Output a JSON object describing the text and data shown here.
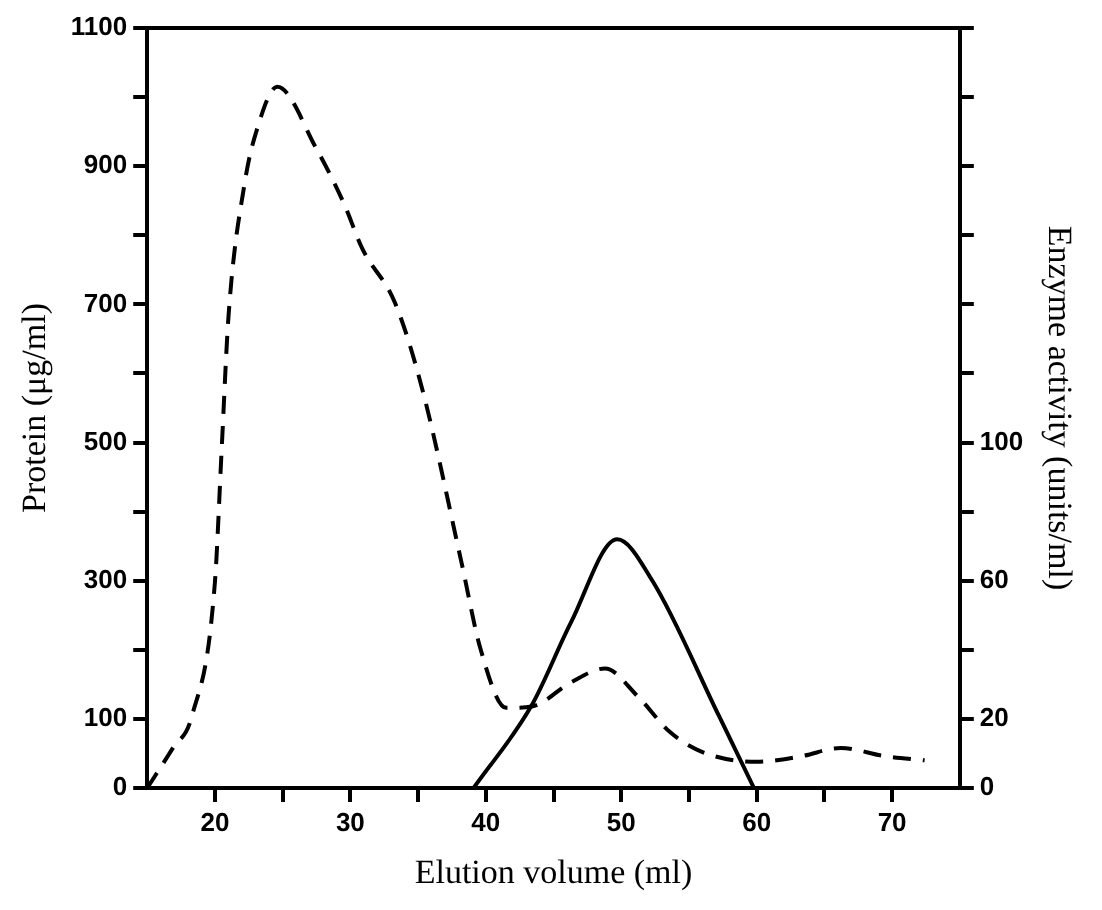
{
  "chart_data": {
    "type": "line",
    "xlabel": "Elution volume (ml)",
    "ylabel": "Protein (μg/ml)",
    "y2label": "Enzyme activity (units/ml)",
    "xlim": [
      15,
      75
    ],
    "xticks": [
      20,
      {
        "value": 25,
        "label": null
      },
      30,
      {
        "value": 35,
        "label": null
      },
      40,
      {
        "value": 45,
        "label": null
      },
      50,
      {
        "value": 55,
        "label": null
      },
      60,
      {
        "value": 65,
        "label": null
      },
      70
    ],
    "ylim": [
      0,
      1100
    ],
    "yticks": [
      0,
      100,
      {
        "value": 200,
        "label": null
      },
      300,
      {
        "value": 400,
        "label": null
      },
      500,
      {
        "value": 600,
        "label": null
      },
      700,
      {
        "value": 800,
        "label": null
      },
      900,
      {
        "value": 1000,
        "label": null
      },
      1100
    ],
    "y2lim": [
      0,
      220
    ],
    "y2ticks": [
      0,
      20,
      {
        "value": 40,
        "label": null
      },
      60,
      {
        "value": 80,
        "label": null
      },
      100,
      {
        "value": 120,
        "label": null
      },
      {
        "value": 140,
        "label": null
      },
      {
        "value": 160,
        "label": null
      },
      {
        "value": 180,
        "label": null
      },
      {
        "value": 200,
        "label": null
      },
      {
        "value": 220,
        "label": null
      }
    ],
    "grid": false,
    "legend": false,
    "marker": "none",
    "series": [
      {
        "color": "#000000",
        "line_style": "dashed",
        "x": [
          15,
          16.9,
          18.3,
          20,
          20.5,
          21,
          22.2,
          23.1,
          24.6,
          27.5,
          29.5,
          30.9,
          33.3,
          35.3,
          38.2,
          39.6,
          41.5,
          43.4,
          46.3,
          48.8,
          51.2,
          53.6,
          56,
          60,
          63.3,
          66.2,
          69.5,
          72.4
        ],
        "values": [
          0,
          58,
          104,
          298,
          491,
          682,
          876,
          953,
          1015,
          925,
          847,
          780,
          702,
          578,
          327,
          202,
          116,
          118,
          153,
          173,
          133,
          81,
          52,
          38,
          46,
          58,
          46,
          40
        ]
      },
      {
        "color": "#000000",
        "line_style": "solid",
        "axis": "y2",
        "x": [
          39.1,
          43.4,
          46.3,
          49.7,
          52.3,
          57.2,
          59.8
        ],
        "values": [
          0,
          24,
          48,
          72,
          60,
          21,
          0
        ]
      }
    ]
  }
}
